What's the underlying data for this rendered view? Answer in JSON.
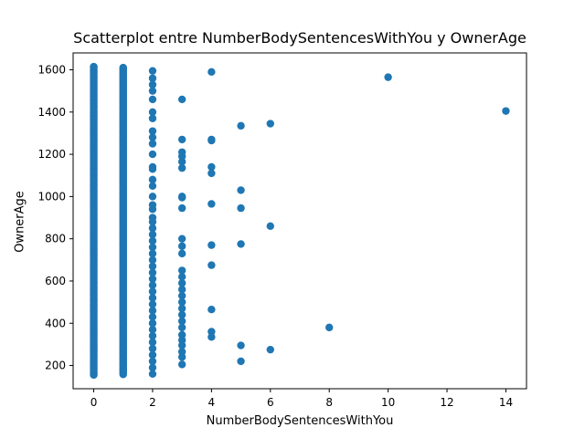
{
  "chart_data": {
    "type": "scatter",
    "title": "Scatterplot entre NumberBodySentencesWithYou y OwnerAge",
    "xlabel": "NumberBodySentencesWithYou",
    "ylabel": "OwnerAge",
    "xlim": [
      -0.7,
      14.7
    ],
    "ylim": [
      90,
      1680
    ],
    "xticks": [
      0,
      2,
      4,
      6,
      8,
      10,
      12,
      14
    ],
    "yticks": [
      200,
      400,
      600,
      800,
      1000,
      1200,
      1400,
      1600
    ],
    "grid": false,
    "marker_color": "#1f77b4",
    "dense_columns": [
      {
        "x": 0,
        "y_range": [
          155,
          1615
        ]
      },
      {
        "x": 1,
        "y_range": [
          158,
          1610
        ]
      }
    ],
    "points": [
      {
        "x": 2,
        "y": 1595
      },
      {
        "x": 2,
        "y": 1560
      },
      {
        "x": 2,
        "y": 1530
      },
      {
        "x": 2,
        "y": 1500
      },
      {
        "x": 2,
        "y": 1460
      },
      {
        "x": 2,
        "y": 1400
      },
      {
        "x": 2,
        "y": 1370
      },
      {
        "x": 2,
        "y": 1310
      },
      {
        "x": 2,
        "y": 1280
      },
      {
        "x": 2,
        "y": 1250
      },
      {
        "x": 2,
        "y": 1200
      },
      {
        "x": 2,
        "y": 1140
      },
      {
        "x": 2,
        "y": 1130
      },
      {
        "x": 2,
        "y": 1080
      },
      {
        "x": 2,
        "y": 1050
      },
      {
        "x": 2,
        "y": 1000
      },
      {
        "x": 2,
        "y": 960
      },
      {
        "x": 2,
        "y": 940
      },
      {
        "x": 2,
        "y": 900
      },
      {
        "x": 2,
        "y": 880
      },
      {
        "x": 2,
        "y": 850
      },
      {
        "x": 2,
        "y": 820
      },
      {
        "x": 2,
        "y": 790
      },
      {
        "x": 2,
        "y": 760
      },
      {
        "x": 2,
        "y": 730
      },
      {
        "x": 2,
        "y": 700
      },
      {
        "x": 2,
        "y": 670
      },
      {
        "x": 2,
        "y": 640
      },
      {
        "x": 2,
        "y": 610
      },
      {
        "x": 2,
        "y": 580
      },
      {
        "x": 2,
        "y": 550
      },
      {
        "x": 2,
        "y": 520
      },
      {
        "x": 2,
        "y": 490
      },
      {
        "x": 2,
        "y": 460
      },
      {
        "x": 2,
        "y": 430
      },
      {
        "x": 2,
        "y": 400
      },
      {
        "x": 2,
        "y": 370
      },
      {
        "x": 2,
        "y": 340
      },
      {
        "x": 2,
        "y": 310
      },
      {
        "x": 2,
        "y": 280
      },
      {
        "x": 2,
        "y": 250
      },
      {
        "x": 2,
        "y": 220
      },
      {
        "x": 2,
        "y": 190
      },
      {
        "x": 2,
        "y": 160
      },
      {
        "x": 3,
        "y": 1460
      },
      {
        "x": 3,
        "y": 1270
      },
      {
        "x": 3,
        "y": 1210
      },
      {
        "x": 3,
        "y": 1190
      },
      {
        "x": 3,
        "y": 1165
      },
      {
        "x": 3,
        "y": 1135
      },
      {
        "x": 3,
        "y": 1000
      },
      {
        "x": 3,
        "y": 995
      },
      {
        "x": 3,
        "y": 945
      },
      {
        "x": 3,
        "y": 800
      },
      {
        "x": 3,
        "y": 765
      },
      {
        "x": 3,
        "y": 730
      },
      {
        "x": 3,
        "y": 650
      },
      {
        "x": 3,
        "y": 620
      },
      {
        "x": 3,
        "y": 590
      },
      {
        "x": 3,
        "y": 560
      },
      {
        "x": 3,
        "y": 530
      },
      {
        "x": 3,
        "y": 500
      },
      {
        "x": 3,
        "y": 470
      },
      {
        "x": 3,
        "y": 440
      },
      {
        "x": 3,
        "y": 410
      },
      {
        "x": 3,
        "y": 380
      },
      {
        "x": 3,
        "y": 345
      },
      {
        "x": 3,
        "y": 320
      },
      {
        "x": 3,
        "y": 295
      },
      {
        "x": 3,
        "y": 265
      },
      {
        "x": 3,
        "y": 240
      },
      {
        "x": 3,
        "y": 205
      },
      {
        "x": 4,
        "y": 1590
      },
      {
        "x": 4,
        "y": 1270
      },
      {
        "x": 4,
        "y": 1265
      },
      {
        "x": 4,
        "y": 1140
      },
      {
        "x": 4,
        "y": 1110
      },
      {
        "x": 4,
        "y": 965
      },
      {
        "x": 4,
        "y": 770
      },
      {
        "x": 4,
        "y": 675
      },
      {
        "x": 4,
        "y": 465
      },
      {
        "x": 4,
        "y": 360
      },
      {
        "x": 4,
        "y": 335
      },
      {
        "x": 5,
        "y": 1335
      },
      {
        "x": 5,
        "y": 1030
      },
      {
        "x": 5,
        "y": 945
      },
      {
        "x": 5,
        "y": 775
      },
      {
        "x": 5,
        "y": 295
      },
      {
        "x": 5,
        "y": 220
      },
      {
        "x": 6,
        "y": 1345
      },
      {
        "x": 6,
        "y": 860
      },
      {
        "x": 6,
        "y": 275
      },
      {
        "x": 8,
        "y": 380
      },
      {
        "x": 10,
        "y": 1565
      },
      {
        "x": 14,
        "y": 1405
      }
    ]
  }
}
